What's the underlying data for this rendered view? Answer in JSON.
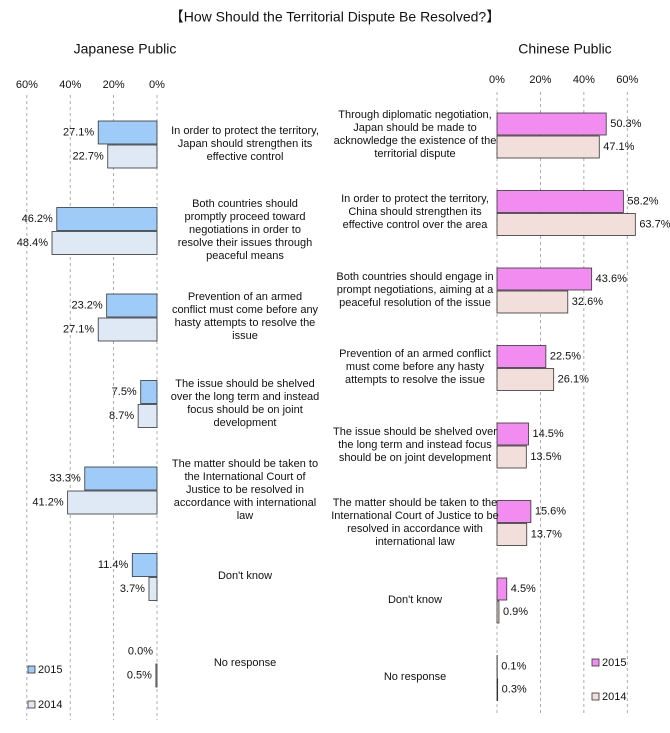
{
  "title": "【How Should the Territorial Dispute Be Resolved?】",
  "chart_data": [
    {
      "type": "bar",
      "orientation": "horizontal",
      "x_reversed": true,
      "grid": true,
      "legend": "lower left",
      "title": "Japanese Public",
      "categories": [
        "In order to protect the territory, Japan should strengthen its effective control",
        "Both countries should promptly proceed toward negotiations in order to resolve their issues through peaceful means",
        "Prevention of an armed conflict must come before any hasty attempts to resolve the issue",
        "The issue should be shelved over the long term and instead focus should be on joint development",
        "The matter should be taken to the International Court of Justice to be resolved in accordance with international law",
        "Don't know",
        "No response"
      ],
      "xlim": [
        0,
        65
      ],
      "xticks": [
        {
          "value": 60,
          "label": "60%"
        },
        {
          "value": 40,
          "label": "40%"
        },
        {
          "value": 20,
          "label": "20%"
        },
        {
          "value": 0,
          "label": "0%"
        }
      ],
      "series": [
        {
          "name": "2015",
          "color": "#9ecbf7",
          "values": [
            27.1,
            46.2,
            23.2,
            7.5,
            33.3,
            11.4,
            0.0
          ],
          "value_labels": [
            "27.1%",
            "46.2%",
            "23.2%",
            "7.5%",
            "33.3%",
            "11.4%",
            "0.0%"
          ]
        },
        {
          "name": "2014",
          "color": "#dfe9f5",
          "values": [
            22.7,
            48.4,
            27.1,
            8.7,
            41.2,
            3.7,
            0.5
          ],
          "value_labels": [
            "22.7%",
            "48.4%",
            "27.1%",
            "8.7%",
            "41.2%",
            "3.7%",
            "0.5%"
          ]
        }
      ]
    },
    {
      "type": "bar",
      "orientation": "horizontal",
      "x_reversed": false,
      "grid": true,
      "legend": "lower right",
      "title": "Chinese Public",
      "categories": [
        "Through diplomatic negotiation, Japan should be made to acknowledge the existence of the territorial dispute",
        "In order to protect the territory, China should strengthen its effective control over the area",
        "Both countries should engage in prompt negotiations, aiming at a peaceful resolution of the issue",
        "Prevention of an armed conflict must come before any hasty attempts to resolve the issue",
        "The issue should be shelved over the long term and instead focus should be on joint development",
        "The matter should be taken to the International Court of Justice to be resolved in accordance with international law",
        "Don't know",
        "No response"
      ],
      "xlim": [
        0,
        70
      ],
      "xticks": [
        {
          "value": 0,
          "label": "0%"
        },
        {
          "value": 20,
          "label": "20%"
        },
        {
          "value": 40,
          "label": "40%"
        },
        {
          "value": 60,
          "label": "60%"
        }
      ],
      "series": [
        {
          "name": "2015",
          "color": "#f28cf0",
          "values": [
            50.3,
            58.2,
            43.6,
            22.5,
            14.5,
            15.6,
            4.5,
            0.1
          ],
          "value_labels": [
            "50.3%",
            "58.2%",
            "43.6%",
            "22.5%",
            "14.5%",
            "15.6%",
            "4.5%",
            "0.1%"
          ]
        },
        {
          "name": "2014",
          "color": "#f2dedb",
          "values": [
            47.1,
            63.7,
            32.6,
            26.1,
            13.5,
            13.7,
            0.9,
            0.3
          ],
          "value_labels": [
            "47.1%",
            "63.7%",
            "32.6%",
            "26.1%",
            "13.5%",
            "13.7%",
            "0.9%",
            "0.3%"
          ]
        }
      ]
    }
  ]
}
